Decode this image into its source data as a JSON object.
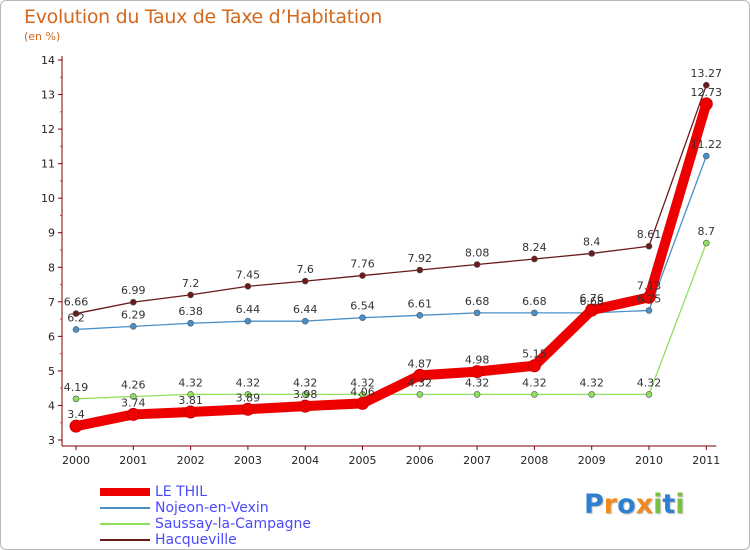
{
  "chart_data": {
    "type": "line",
    "title": "Evolution du Taux de Taxe d’Habitation",
    "ylabel": "(en %)",
    "xlabel": "",
    "categories": [
      "2000",
      "2001",
      "2002",
      "2003",
      "2004",
      "2005",
      "2006",
      "2007",
      "2008",
      "2009",
      "2010",
      "2011"
    ],
    "ylim": [
      3,
      14
    ],
    "yticks": [
      "3",
      "4",
      "5",
      "6",
      "7",
      "8",
      "9",
      "10",
      "11",
      "12",
      "13",
      "14"
    ],
    "grid": false,
    "legend_position": "bottom-left",
    "series": [
      {
        "name": "Hacqueville",
        "color": "#6b1a1a",
        "values": [
          6.66,
          6.99,
          7.2,
          7.45,
          7.6,
          7.76,
          7.92,
          8.08,
          8.24,
          8.4,
          8.61,
          13.27
        ],
        "labels": [
          "6.66",
          "6.99",
          "7.2",
          "7.45",
          "7.6",
          "7.76",
          "7.92",
          "8.08",
          "8.24",
          "8.4",
          "8.61",
          "13.27"
        ]
      },
      {
        "name": "Nojeon-en-Vexin",
        "color": "#4a90c8",
        "values": [
          6.2,
          6.29,
          6.38,
          6.44,
          6.44,
          6.54,
          6.61,
          6.68,
          6.68,
          6.68,
          6.75,
          11.22
        ],
        "labels": [
          "6.2",
          "6.29",
          "6.38",
          "6.44",
          "6.44",
          "6.54",
          "6.61",
          "6.68",
          "6.68",
          "6.68",
          "6.75",
          "11.22"
        ]
      },
      {
        "name": "Saussay-la-Campagne",
        "color": "#90e060",
        "values": [
          4.19,
          4.26,
          4.32,
          4.32,
          4.32,
          4.32,
          4.32,
          4.32,
          4.32,
          4.32,
          4.32,
          8.7
        ],
        "labels": [
          "4.19",
          "4.26",
          "4.32",
          "4.32",
          "4.32",
          "4.32",
          "4.32",
          "4.32",
          "4.32",
          "4.32",
          "4.32",
          "8.7"
        ]
      },
      {
        "name": "LE THIL",
        "color": "#ee0000",
        "values": [
          3.4,
          3.74,
          3.81,
          3.89,
          3.98,
          4.06,
          4.87,
          4.98,
          5.15,
          6.76,
          7.13,
          12.73
        ],
        "labels": [
          "3.4",
          "3.74",
          "3.81",
          "3.89",
          "3.98",
          "4.06",
          "4.87",
          "4.98",
          "5.15",
          "6.76",
          "7.13",
          "12.73"
        ]
      }
    ]
  },
  "legend": [
    {
      "name": "LE THIL",
      "color": "#ee0000"
    },
    {
      "name": "Nojeon-en-Vexin",
      "color": "#4a90c8"
    },
    {
      "name": "Saussay-la-Campagne",
      "color": "#90e060"
    },
    {
      "name": "Hacqueville",
      "color": "#6b1a1a"
    }
  ],
  "logo": {
    "text": "Proxiti",
    "letters": [
      {
        "char": "P",
        "color": "#2f7fd0"
      },
      {
        "char": "r",
        "color": "#f08a1c"
      },
      {
        "char": "o",
        "color": "#2f7fd0"
      },
      {
        "char": "x",
        "color": "#f08a1c"
      },
      {
        "char": "i",
        "color": "#7ac142"
      },
      {
        "char": "t",
        "color": "#2f7fd0"
      },
      {
        "char": "i",
        "color": "#7ac142"
      }
    ]
  }
}
